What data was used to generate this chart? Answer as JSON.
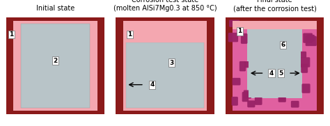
{
  "title1": "Initial state",
  "title2": "Corrosion test state\n(molten AlSi7Mg0.3 at 850 °C)",
  "title3": "Final state\n(after the corrosion test)",
  "colors": {
    "dark_red": "#8B1A1A",
    "pink": "#F4A7B0",
    "light_gray": "#B8C4C8",
    "white": "#FFFFFF",
    "magenta_band": "#E060A0",
    "dark_magenta": "#992266",
    "bg": "#FFFFFF"
  },
  "label_fontsize": 6.5,
  "title_fontsize": 7
}
